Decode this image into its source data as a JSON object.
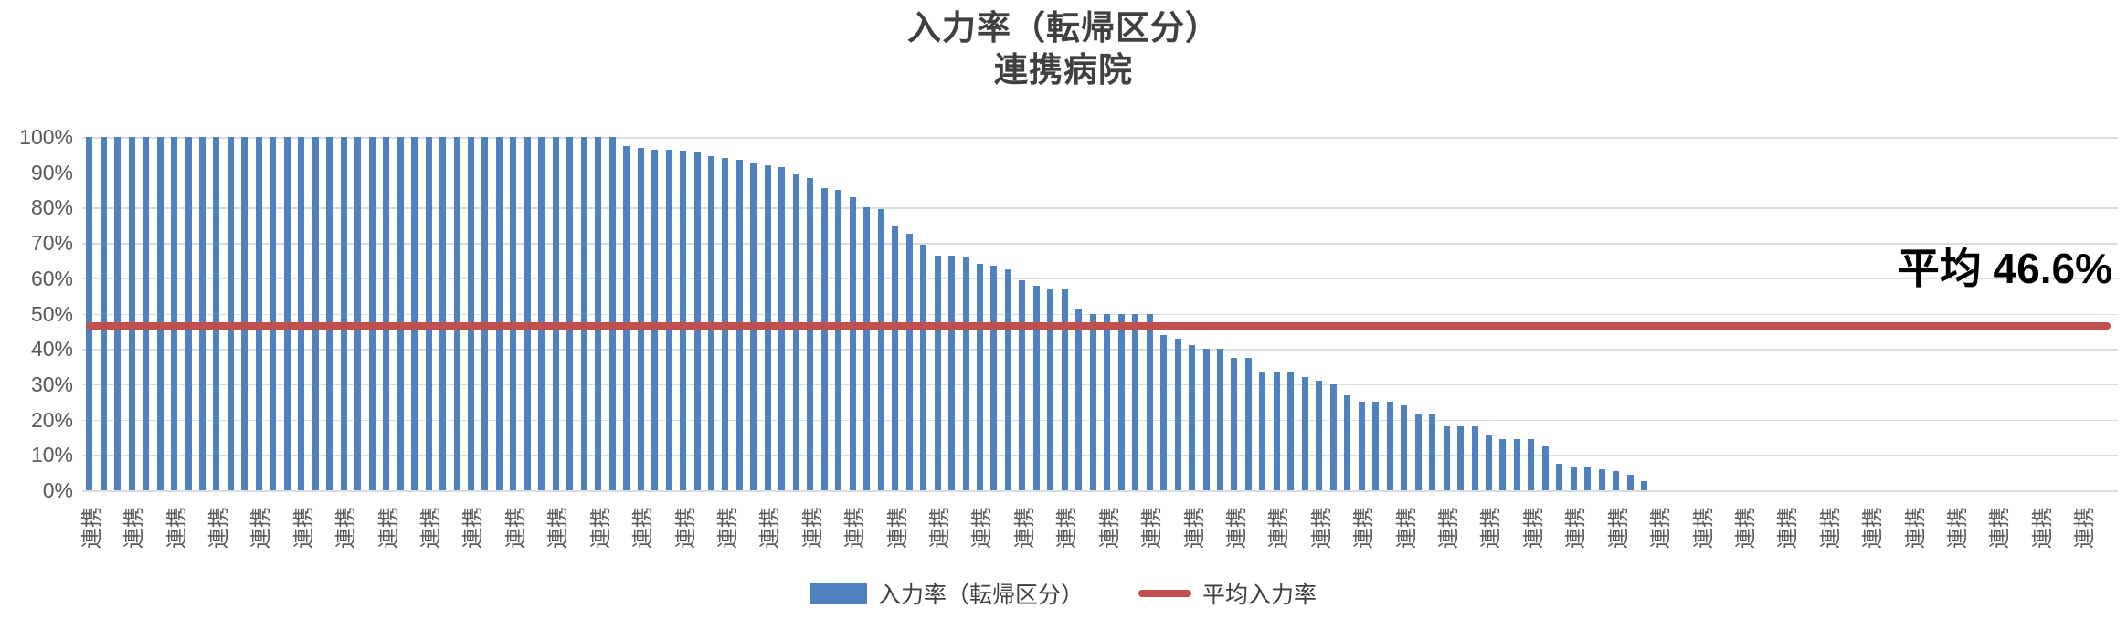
{
  "title": {
    "line1": "入力率（転帰区分）",
    "line2": "連携病院"
  },
  "annotation": {
    "label": "平均 46.6%"
  },
  "legend": [
    {
      "label": "入力率（転帰区分）",
      "type": "bar",
      "color": "#4e81bd"
    },
    {
      "label": "平均入力率",
      "type": "line",
      "color": "#c0504d"
    }
  ],
  "colors": {
    "bar": "#4e81bd",
    "average_line": "#c0504d",
    "gridline": "#dcdcdc",
    "axis_text": "#595959",
    "title_text": "#404040",
    "annotation_text": "#000000"
  },
  "chart_data": {
    "type": "bar",
    "title": "入力率（転帰区分）",
    "subtitle": "連携病院",
    "xlabel": "",
    "ylabel": "",
    "ylim": [
      0,
      100
    ],
    "grid": "horizontal",
    "legend_position": "bottom-center",
    "y_ticks": [
      "0%",
      "10%",
      "20%",
      "30%",
      "40%",
      "50%",
      "60%",
      "70%",
      "80%",
      "90%",
      "100%"
    ],
    "categories_repeated": {
      "label": "連携",
      "count": 144
    },
    "x_tick_label_text": "連携",
    "x_label_interval": 3,
    "x_label_rotation_deg": -90,
    "average_line": {
      "value": 46.6,
      "annotation": "平均 46.6%",
      "legend": "平均入力率",
      "color": "#c0504d"
    },
    "series": [
      {
        "name": "入力率（転帰区分）",
        "color": "#4e81bd",
        "values": [
          100,
          100,
          100,
          100,
          100,
          100,
          100,
          100,
          100,
          100,
          100,
          100,
          100,
          100,
          100,
          100,
          100,
          100,
          100,
          100,
          100,
          100,
          100,
          100,
          100,
          100,
          100,
          100,
          100,
          100,
          100,
          100,
          100,
          100,
          100,
          100,
          100,
          100,
          97.5,
          97,
          96.5,
          96.5,
          96,
          95.5,
          94.5,
          94,
          93.5,
          92.5,
          92,
          91.5,
          89.5,
          88.5,
          85.5,
          85,
          83,
          80,
          79.5,
          75,
          72.5,
          69.5,
          66.5,
          66.5,
          66,
          64,
          63.5,
          62.5,
          59.5,
          58,
          57,
          57,
          51.5,
          50,
          50,
          50,
          50,
          50,
          44,
          43,
          41,
          40,
          40,
          37.5,
          37.5,
          33.5,
          33.5,
          33.5,
          32,
          31,
          30,
          27,
          25,
          25,
          25,
          24,
          21.5,
          21.5,
          18,
          18,
          18,
          15.5,
          14.5,
          14.5,
          14.5,
          12.5,
          7.5,
          6.5,
          6.5,
          6,
          5.5,
          4.5,
          2.5,
          0,
          0,
          0,
          0,
          0,
          0,
          0,
          0,
          0,
          0,
          0,
          0,
          0,
          0,
          0,
          0,
          0,
          0,
          0,
          0,
          0,
          0,
          0,
          0,
          0,
          0,
          0,
          0,
          0,
          0,
          0,
          0,
          0
        ]
      }
    ]
  }
}
